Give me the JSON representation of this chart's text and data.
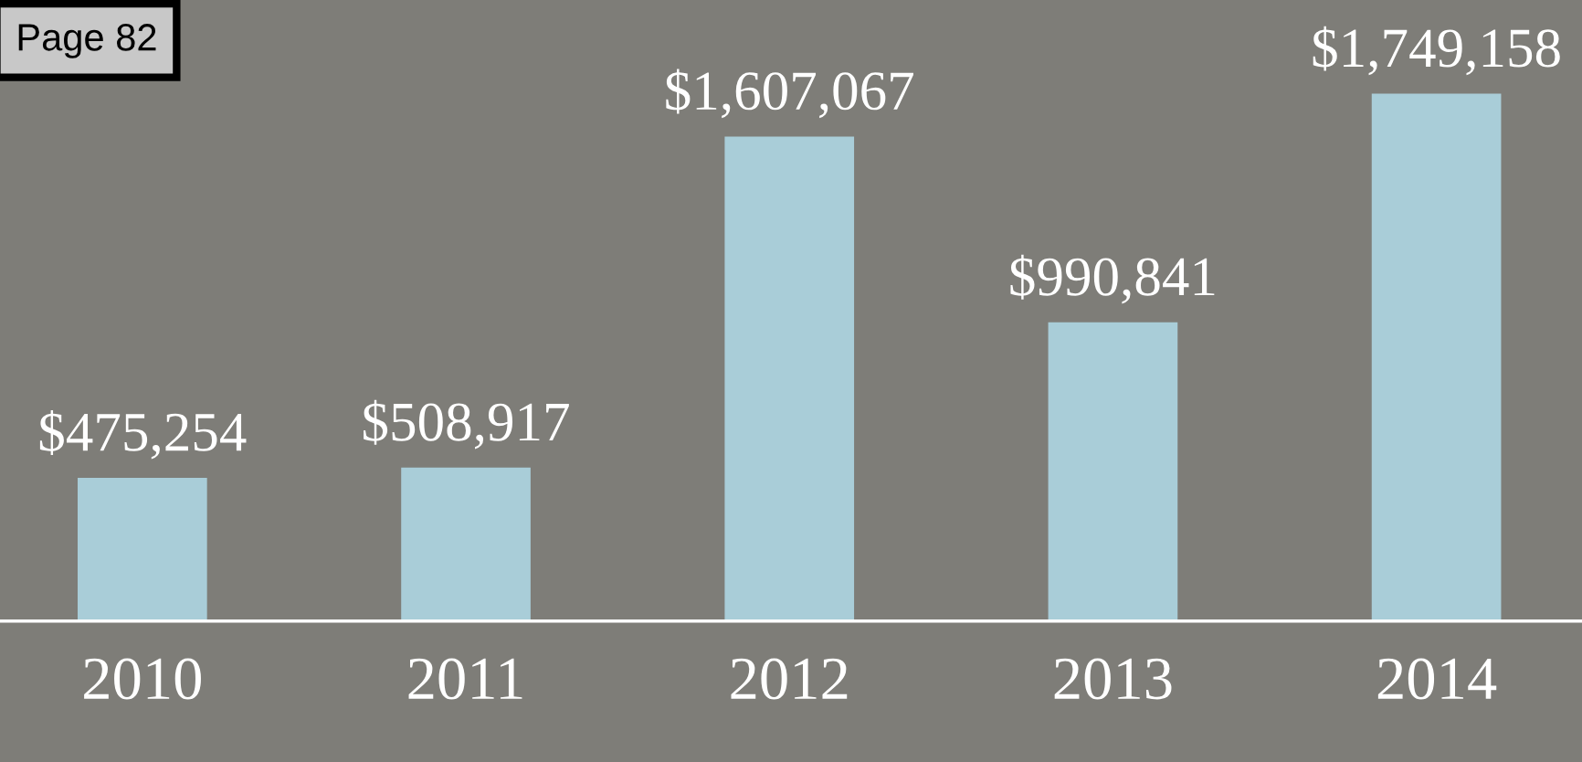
{
  "chart_data": {
    "type": "bar",
    "categories": [
      "2010",
      "2011",
      "2012",
      "2013",
      "2014"
    ],
    "values": [
      475254,
      508917,
      1607067,
      990841,
      1749158
    ],
    "value_labels": [
      "$475,254",
      "$508,917",
      "$1,607,067",
      "$990,841",
      "$1,749,158"
    ],
    "color": "#a9cdd8",
    "ylim": [
      0,
      2060000
    ],
    "tick_labels": "x",
    "grid": false,
    "legend": false,
    "annotations": [
      "Page 82"
    ]
  }
}
